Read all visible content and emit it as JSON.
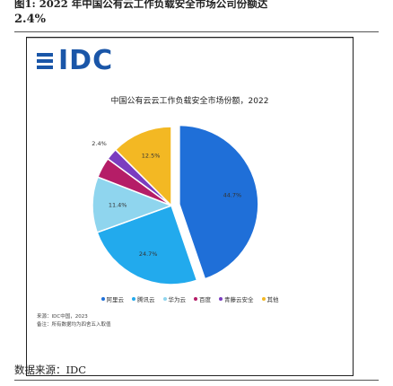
{
  "caption": {
    "line1": "图1: 2022 年中国公有云工作负载安全市场公司份额达",
    "line2": "2.4%"
  },
  "logo": {
    "text": "IDC"
  },
  "notes": {
    "source_note": "来源：IDC中国，2023",
    "remark": "备注：所有数据均为四舍五入取值"
  },
  "source": "数据来源：IDC",
  "colors": {
    "series": [
      "#1f6fd8",
      "#22aaed",
      "#8fd5ee",
      "#b51d67",
      "#7b3dc0",
      "#f3b823"
    ],
    "frame": "#222222",
    "logo": "#1a56a8"
  },
  "chart_data": {
    "type": "pie",
    "title": "中国公有云云工作负载安全市场份额，2022",
    "series": [
      {
        "name": "阿里云",
        "value": 44.7,
        "label": "44.7%"
      },
      {
        "name": "腾讯云",
        "value": 24.7,
        "label": "24.7%"
      },
      {
        "name": "华为云",
        "value": 11.4,
        "label": "11.4%"
      },
      {
        "name": "百度",
        "value": 4.2,
        "label": ""
      },
      {
        "name": "青藤云安全",
        "value": 2.4,
        "label": "2.4%"
      },
      {
        "name": "其他",
        "value": 12.5,
        "label": "12.5%"
      }
    ],
    "legend_position": "bottom"
  }
}
